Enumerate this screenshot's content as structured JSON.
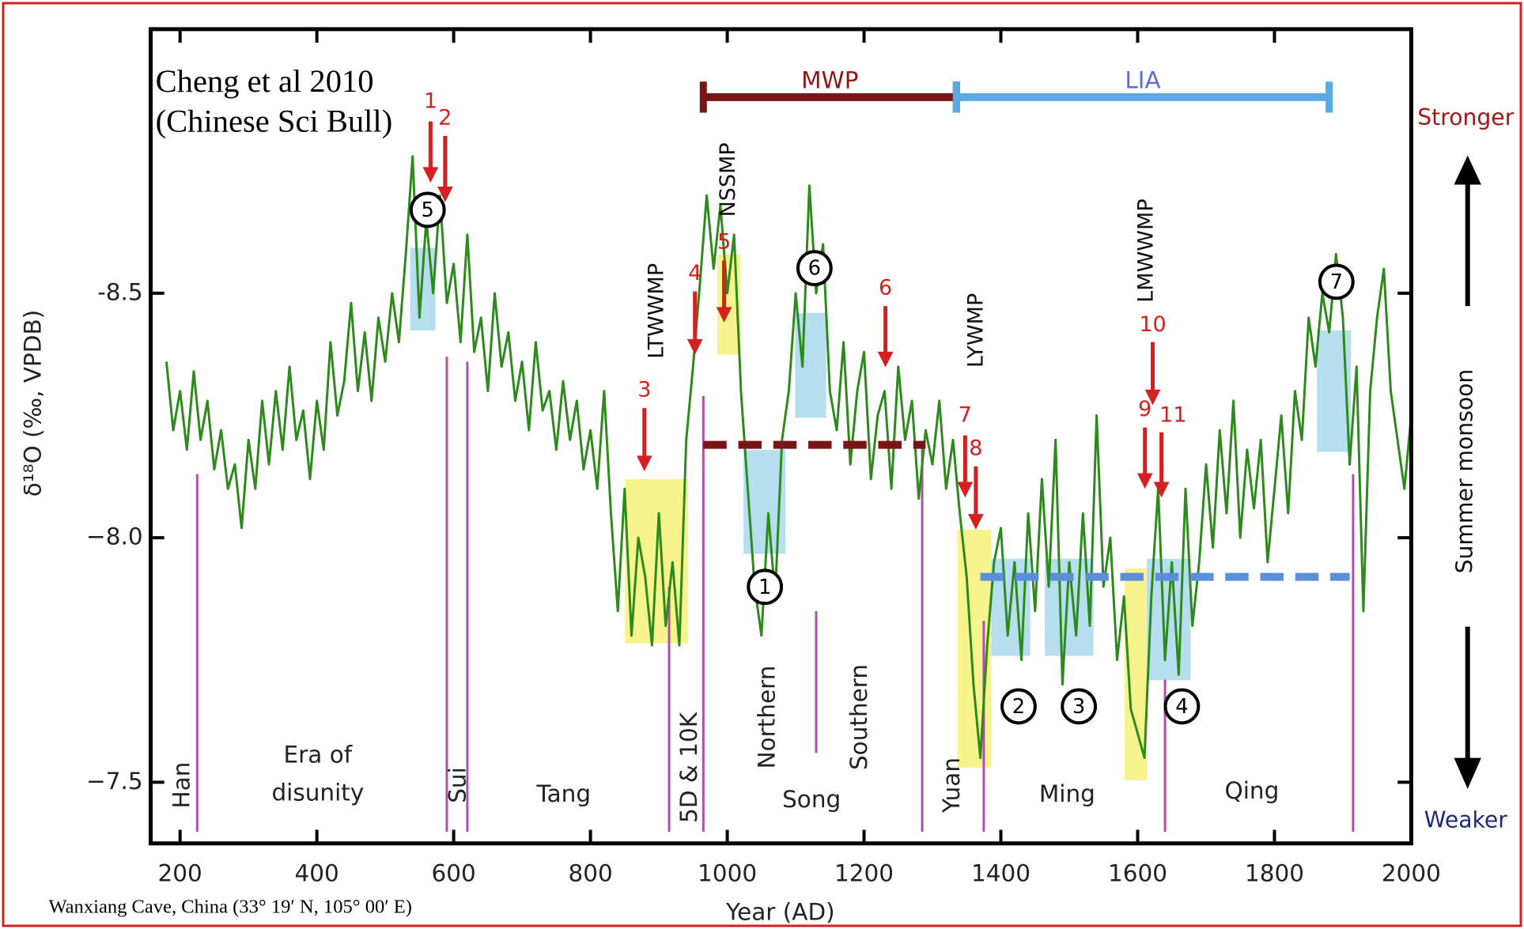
{
  "chart_data": {
    "type": "line",
    "title_lines": [
      "Cheng et al 2010",
      "(Chinese Sci Bull)"
    ],
    "caption": "Wanxiang Cave, China (33° 19′ N, 105° 00′ E)",
    "xlabel": "Year (AD)",
    "ylabel": "δ¹⁸O (‰, VPDB)",
    "xlim": [
      157,
      2000
    ],
    "xticks": [
      200,
      400,
      600,
      800,
      1000,
      1200,
      1400,
      1600,
      1800,
      2000
    ],
    "ylim": [
      -7.375,
      -9.04
    ],
    "yticks": [
      {
        "value": -8.5,
        "label": "-8.5"
      },
      {
        "value": -8.0,
        "label": "−8.0"
      },
      {
        "value": -7.5,
        "label": "−7.5"
      }
    ],
    "color": "#2f8a1e",
    "x": [
      180,
      190,
      200,
      210,
      220,
      230,
      240,
      250,
      260,
      270,
      280,
      290,
      300,
      310,
      320,
      330,
      340,
      350,
      360,
      370,
      380,
      390,
      400,
      410,
      420,
      430,
      440,
      450,
      460,
      470,
      480,
      490,
      500,
      510,
      520,
      530,
      540,
      550,
      560,
      570,
      580,
      590,
      600,
      610,
      620,
      630,
      640,
      650,
      660,
      670,
      680,
      690,
      700,
      710,
      720,
      730,
      740,
      750,
      760,
      770,
      780,
      790,
      800,
      810,
      820,
      830,
      840,
      850,
      860,
      870,
      880,
      890,
      900,
      910,
      920,
      930,
      940,
      950,
      960,
      970,
      980,
      990,
      1000,
      1010,
      1020,
      1030,
      1040,
      1050,
      1060,
      1070,
      1080,
      1090,
      1100,
      1110,
      1120,
      1130,
      1140,
      1150,
      1160,
      1170,
      1180,
      1190,
      1200,
      1210,
      1220,
      1230,
      1240,
      1250,
      1260,
      1270,
      1280,
      1290,
      1300,
      1310,
      1320,
      1330,
      1340,
      1350,
      1360,
      1370,
      1380,
      1390,
      1400,
      1410,
      1420,
      1430,
      1440,
      1450,
      1460,
      1470,
      1480,
      1490,
      1500,
      1510,
      1520,
      1530,
      1540,
      1550,
      1560,
      1570,
      1580,
      1590,
      1600,
      1610,
      1620,
      1630,
      1640,
      1650,
      1660,
      1670,
      1680,
      1690,
      1700,
      1710,
      1720,
      1730,
      1740,
      1750,
      1760,
      1770,
      1780,
      1790,
      1800,
      1810,
      1820,
      1830,
      1840,
      1850,
      1860,
      1870,
      1880,
      1890,
      1900,
      1910,
      1920,
      1930,
      1940,
      1950,
      1960,
      1970,
      1980,
      1990,
      2000
    ],
    "values": [
      -8.36,
      -8.22,
      -8.3,
      -8.18,
      -8.34,
      -8.2,
      -8.28,
      -8.14,
      -8.22,
      -8.1,
      -8.15,
      -8.02,
      -8.2,
      -8.1,
      -8.28,
      -8.15,
      -8.3,
      -8.18,
      -8.35,
      -8.2,
      -8.26,
      -8.12,
      -8.28,
      -8.18,
      -8.4,
      -8.25,
      -8.32,
      -8.48,
      -8.3,
      -8.42,
      -8.28,
      -8.45,
      -8.36,
      -8.5,
      -8.4,
      -8.58,
      -8.78,
      -8.45,
      -8.65,
      -8.5,
      -8.7,
      -8.48,
      -8.56,
      -8.4,
      -8.62,
      -8.38,
      -8.45,
      -8.3,
      -8.5,
      -8.35,
      -8.42,
      -8.28,
      -8.36,
      -8.22,
      -8.4,
      -8.26,
      -8.3,
      -8.18,
      -8.32,
      -8.2,
      -8.28,
      -8.14,
      -8.22,
      -8.1,
      -8.3,
      -8.05,
      -7.85,
      -8.1,
      -7.8,
      -8.0,
      -7.92,
      -7.78,
      -8.05,
      -7.82,
      -7.95,
      -7.78,
      -8.2,
      -8.35,
      -8.52,
      -8.7,
      -8.55,
      -8.68,
      -8.5,
      -8.62,
      -8.3,
      -8.1,
      -7.9,
      -7.8,
      -8.05,
      -7.88,
      -8.2,
      -8.3,
      -8.5,
      -8.35,
      -8.72,
      -8.5,
      -8.6,
      -8.3,
      -8.22,
      -8.4,
      -8.15,
      -8.3,
      -8.38,
      -8.12,
      -8.25,
      -8.3,
      -8.1,
      -8.35,
      -8.2,
      -8.28,
      -8.08,
      -8.22,
      -8.15,
      -8.28,
      -8.1,
      -8.2,
      -8.05,
      -7.92,
      -7.7,
      -7.55,
      -7.78,
      -7.95,
      -8.02,
      -7.8,
      -7.95,
      -7.75,
      -8.05,
      -7.85,
      -8.12,
      -7.9,
      -8.2,
      -7.7,
      -7.95,
      -7.8,
      -8.05,
      -7.82,
      -8.25,
      -7.9,
      -8.0,
      -7.75,
      -7.88,
      -7.65,
      -7.6,
      -7.55,
      -7.88,
      -8.1,
      -7.75,
      -7.95,
      -7.72,
      -8.1,
      -7.82,
      -7.95,
      -8.15,
      -7.98,
      -8.22,
      -8.05,
      -8.28,
      -8.0,
      -8.18,
      -8.06,
      -8.2,
      -7.95,
      -8.1,
      -8.25,
      -8.05,
      -8.3,
      -8.2,
      -8.45,
      -8.35,
      -8.5,
      -8.42,
      -8.58,
      -8.45,
      -8.15,
      -8.35,
      -7.85,
      -8.3,
      -8.45,
      -8.55,
      -8.3,
      -8.2,
      -8.1,
      -8.25
    ],
    "periods": [
      {
        "name": "MWP",
        "color": "#7b1416",
        "start": 965,
        "end": 1335,
        "mean": -8.19,
        "mean_start": 965,
        "mean_end": 1290
      },
      {
        "name": "LIA",
        "color": "#5aa9e6",
        "start": 1335,
        "end": 1880,
        "mean": -7.92,
        "mean_start": 1370,
        "mean_end": 1910
      }
    ],
    "boundaries": [
      {
        "year": 225,
        "top": -8.13
      },
      {
        "year": 590,
        "top": -8.37
      },
      {
        "year": 620,
        "top": -8.36
      },
      {
        "year": 915,
        "top": -7.9
      },
      {
        "year": 965,
        "top": -8.29
      },
      {
        "year": 1130,
        "top": -7.85,
        "bottom": -7.56
      },
      {
        "year": 1285,
        "top": -8.19
      },
      {
        "year": 1375,
        "top": -7.83
      },
      {
        "year": 1640,
        "top": -7.71
      },
      {
        "year": 1915,
        "top": -8.13
      }
    ],
    "monsoon_labels": [
      "NSSMP",
      "LTWWMP",
      "LYWMP",
      "LMWWMP"
    ],
    "dynasties": [
      "Han",
      [
        "Era of",
        "disunity"
      ],
      "Sui",
      "Tang",
      "5D & 10K",
      "Northern",
      "Song",
      "Southern",
      "Yuan",
      "Ming",
      "Qing"
    ],
    "events": [
      "1",
      "2",
      "3",
      "4",
      "5",
      "6",
      "7",
      "8",
      "9",
      "10",
      "11"
    ],
    "circles": [
      "5",
      "6",
      "1",
      "2",
      "3",
      "4",
      "7"
    ],
    "side_labels": {
      "stronger": "Stronger",
      "weaker": "Weaker",
      "monsoon": "Summer monsoon"
    }
  }
}
